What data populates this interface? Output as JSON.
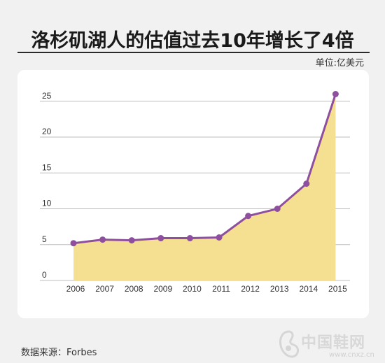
{
  "title": "洛杉矶湖人的估值过去10年增长了4倍",
  "unit_label": "单位:亿美元",
  "source": "数据来源：Forbes",
  "watermark": {
    "text": "中国鞋网",
    "url": "www.cnxz.cn"
  },
  "colors": {
    "line": "#8e4f9e",
    "fill": "#f5df91",
    "grid": "#bdbdbd"
  },
  "chart_data": {
    "type": "area",
    "title": "洛杉矶湖人的估值过去10年增长了4倍",
    "ylabel": "单位:亿美元",
    "xlabel": "",
    "x": [
      "2006",
      "2007",
      "2008",
      "2009",
      "2010",
      "2011",
      "2012",
      "2013",
      "2014",
      "2015"
    ],
    "values": [
      5.2,
      5.7,
      5.6,
      5.9,
      5.9,
      6.0,
      9.0,
      10.0,
      13.5,
      26.0
    ],
    "ylim": [
      0,
      26
    ],
    "yticks": [
      "0",
      "5",
      "10",
      "15",
      "20",
      "25"
    ],
    "grid": true,
    "legend": "none"
  }
}
